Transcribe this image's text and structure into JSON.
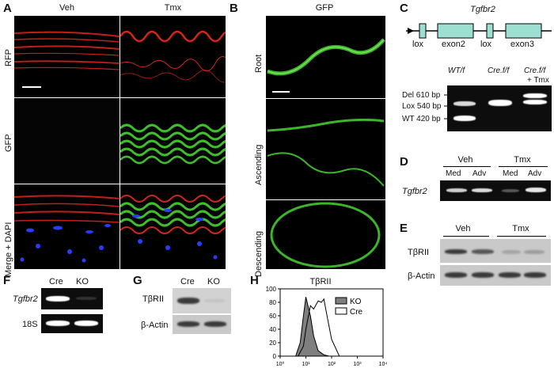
{
  "panelA": {
    "letter": "A",
    "col1": "Veh",
    "col2": "Tmx",
    "rows": [
      "RFP",
      "GFP",
      "Merge + DAPI"
    ]
  },
  "panelB": {
    "letter": "B",
    "title": "GFP",
    "rows": [
      "Root",
      "Ascending",
      "Descending"
    ]
  },
  "panelC": {
    "letter": "C",
    "gene": "Tgfbr2",
    "map_labels": [
      "lox",
      "exon2",
      "lox",
      "exon3"
    ],
    "lanes": [
      "WT/f",
      "Cre.f/f",
      "Cre.f/f",
      "+ Tmx"
    ],
    "bands": [
      "Del 610 bp",
      "Lox 540 bp",
      "WT 420 bp"
    ]
  },
  "panelD": {
    "letter": "D",
    "groups": [
      "Veh",
      "Tmx"
    ],
    "lanes": [
      "Med",
      "Adv",
      "Med",
      "Adv"
    ],
    "row": "Tgfbr2"
  },
  "panelE": {
    "letter": "E",
    "groups": [
      "Veh",
      "Tmx"
    ],
    "rows": [
      "TβRII",
      "β-Actin"
    ]
  },
  "panelF": {
    "letter": "F",
    "lanes": [
      "Cre",
      "KO"
    ],
    "rows": [
      "Tgfbr2",
      "18S"
    ]
  },
  "panelG": {
    "letter": "G",
    "lanes": [
      "Cre",
      "KO"
    ],
    "rows": [
      "TβRII",
      "β-Actin"
    ]
  },
  "panelH": {
    "letter": "H",
    "title": "TβRII",
    "legend": [
      "KO",
      "Cre"
    ],
    "yticks": [
      "0",
      "20",
      "40",
      "60",
      "80",
      "100"
    ],
    "xticks": [
      "10⁰",
      "10¹",
      "10²",
      "10³",
      "10⁴"
    ]
  },
  "chart_data": {
    "type": "area",
    "title": "TβRII",
    "xscale": "log",
    "xlim": [
      1,
      10000
    ],
    "ylim": [
      0,
      100
    ],
    "series": [
      {
        "name": "KO",
        "x": [
          4,
          6,
          8,
          10,
          12,
          15,
          20,
          30,
          50,
          80
        ],
        "values": [
          0,
          20,
          60,
          88,
          75,
          60,
          30,
          8,
          2,
          0
        ]
      },
      {
        "name": "Cre",
        "x": [
          5,
          8,
          10,
          15,
          20,
          30,
          40,
          50,
          70,
          100,
          200
        ],
        "values": [
          0,
          15,
          40,
          75,
          70,
          82,
          80,
          85,
          55,
          25,
          0
        ]
      }
    ]
  }
}
